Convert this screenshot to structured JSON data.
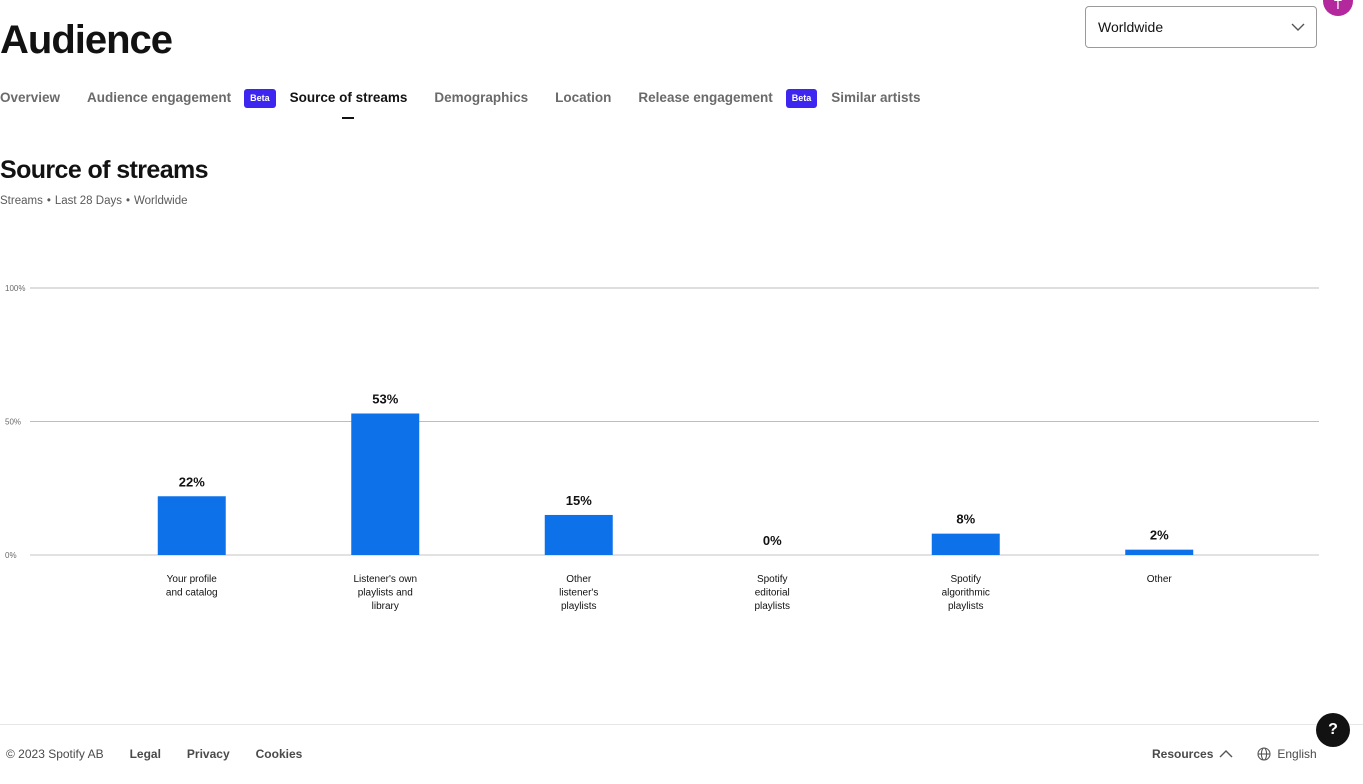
{
  "header": {
    "title": "Audience",
    "region_select": {
      "value": "Worldwide",
      "icon": "chevron-down-icon"
    },
    "avatar_initial": "T"
  },
  "tabs": [
    {
      "label": "Overview",
      "active": false,
      "badge": ""
    },
    {
      "label": "Audience engagement",
      "active": false,
      "badge": "Beta"
    },
    {
      "label": "Source of streams",
      "active": true,
      "badge": ""
    },
    {
      "label": "Demographics",
      "active": false,
      "badge": ""
    },
    {
      "label": "Location",
      "active": false,
      "badge": ""
    },
    {
      "label": "Release engagement",
      "active": false,
      "badge": "Beta"
    },
    {
      "label": "Similar artists",
      "active": false,
      "badge": ""
    }
  ],
  "section": {
    "title": "Source of streams",
    "subtitle_parts": [
      "Streams",
      "•",
      "Last 28 Days",
      "•",
      "Worldwide"
    ]
  },
  "chart_data": {
    "type": "bar",
    "categories": [
      [
        "Your profile",
        "and catalog"
      ],
      [
        "Listener's own",
        "playlists and",
        "library"
      ],
      [
        "Other",
        "listener's",
        "playlists"
      ],
      [
        "Spotify",
        "editorial",
        "playlists"
      ],
      [
        "Spotify",
        "algorithmic",
        "playlists"
      ],
      [
        "Other"
      ]
    ],
    "values": [
      22,
      53,
      15,
      0,
      8,
      2
    ],
    "value_labels": [
      "22%",
      "53%",
      "15%",
      "0%",
      "8%",
      "2%"
    ],
    "ylim": [
      0,
      100
    ],
    "yticks": [
      0,
      50,
      100
    ],
    "ytick_labels": [
      "0%",
      "50%",
      "100%"
    ],
    "grid": true,
    "bar_color": "#0d72ea"
  },
  "footer": {
    "copyright": "© 2023 Spotify AB",
    "links": [
      "Legal",
      "Privacy",
      "Cookies"
    ],
    "resources": "Resources",
    "language": "English",
    "help_label": "?"
  },
  "colors": {
    "beta_badge": "#3d26ef",
    "avatar": "#b3289d",
    "bar": "#0d72ea"
  }
}
